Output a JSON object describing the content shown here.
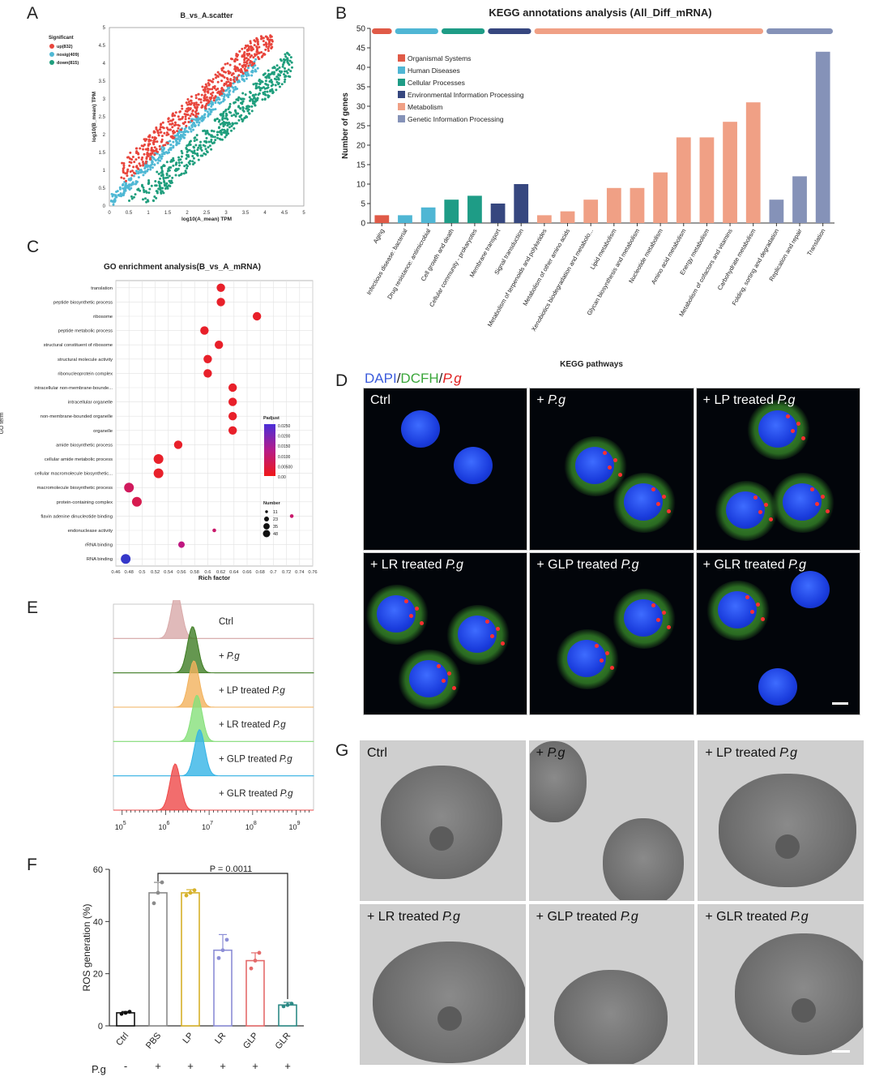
{
  "panels": {
    "A": "A",
    "B": "B",
    "C": "C",
    "D": "D",
    "E": "E",
    "F": "F",
    "G": "G"
  },
  "chart_data": [
    {
      "id": "A",
      "type": "scatter",
      "title": "B_vs_A.scatter",
      "xlabel": "log10(A_mean) TPM",
      "ylabel": "log10(B_mean) TPM",
      "xlim": [
        0,
        5
      ],
      "ylim": [
        0,
        5
      ],
      "xticks": [
        "0",
        "0.5",
        "1",
        "1.5",
        "2",
        "2.5",
        "3",
        "3.5",
        "4",
        "4.5",
        "5"
      ],
      "yticks": [
        "0",
        "0.5",
        "1",
        "1.5",
        "2",
        "2.5",
        "3",
        "3.5",
        "4",
        "4.5",
        "5"
      ],
      "legend_title": "Significant",
      "legend": [
        {
          "label": "up(832)",
          "color": "#e8453c"
        },
        {
          "label": "nosig(409)",
          "color": "#4fb8d4"
        },
        {
          "label": "down(815)",
          "color": "#1f9e7d"
        }
      ]
    },
    {
      "id": "B",
      "type": "bar",
      "title": "KEGG annotations analysis (All_Diff_mRNA)",
      "xlabel": "KEGG pathways",
      "ylabel": "Number of genes",
      "ylim": [
        0,
        50
      ],
      "yticks": [
        "0",
        "5",
        "10",
        "15",
        "20",
        "25",
        "30",
        "35",
        "40",
        "45",
        "50"
      ],
      "categories": [
        "Aging",
        "Infectious disease: bacterial",
        "Drug resistance: antimicrobial",
        "Cell growth and death",
        "Cellular community - prokaryotes",
        "Membrane transport",
        "Signal transduction",
        "Metabolism of terpenoids and polyketides",
        "Metabolism of other amino acids",
        "Xenobiotics biodegradation and metabolo...",
        "Lipid metabolism",
        "Glycan biosynthesis and metabolism",
        "Nucleotide metabolism",
        "Amino acid metabolism",
        "Energy metabolism",
        "Metabolism of cofactors and vitamins",
        "Carbohydrate metabolism",
        "Folding, sorting and degradation",
        "Replication and repair",
        "Translation"
      ],
      "values": [
        2,
        2,
        4,
        6,
        7,
        5,
        10,
        2,
        3,
        6,
        9,
        9,
        13,
        22,
        22,
        26,
        31,
        6,
        12,
        44
      ],
      "groups": [
        0,
        1,
        1,
        2,
        2,
        3,
        3,
        4,
        4,
        4,
        4,
        4,
        4,
        4,
        4,
        4,
        4,
        5,
        5,
        5
      ],
      "legend": [
        {
          "label": "Organismal Systems",
          "color": "#e05a47"
        },
        {
          "label": "Human Diseases",
          "color": "#4fb6d4"
        },
        {
          "label": "Cellular Processes",
          "color": "#1e9c86"
        },
        {
          "label": "Environmental Information Processing",
          "color": "#36477f"
        },
        {
          "label": "Metabolism",
          "color": "#f0a085"
        },
        {
          "label": "Genetic Information Processing",
          "color": "#8592b8"
        }
      ]
    },
    {
      "id": "C",
      "type": "scatter",
      "title": "GO enrichment analysis(B_vs_A_mRNA)",
      "xlabel": "Rich factor",
      "ylabel": "GO term",
      "xlim": [
        0.46,
        0.76
      ],
      "xticks": [
        "0.46",
        "0.48",
        "0.5",
        "0.52",
        "0.54",
        "0.56",
        "0.58",
        "0.6",
        "0.62",
        "0.64",
        "0.66",
        "0.68",
        "0.7",
        "0.72",
        "0.74",
        "0.76"
      ],
      "terms": [
        "translation",
        "peptide biosynthetic process",
        "ribosome",
        "peptide metabolic process",
        "structural constituent of ribosome",
        "structural molecule activity",
        "ribonucleoprotein complex",
        "intracellular non-membrane-bounde...",
        "intracellular organelle",
        "non-membrane-bounded organelle",
        "organelle",
        "amide biosynthetic process",
        "cellular amide metabolic process",
        "cellular macromolecule biosynthetic...",
        "macromolecule biosynthetic process",
        "protein-containing complex",
        "flavin adenine dinucleotide binding",
        "endonuclease activity",
        "rRNA binding",
        "RNA binding"
      ],
      "rich": [
        0.62,
        0.62,
        0.675,
        0.595,
        0.617,
        0.6,
        0.6,
        0.638,
        0.638,
        0.638,
        0.638,
        0.555,
        0.525,
        0.525,
        0.48,
        0.492,
        0.728,
        0.61,
        0.56,
        0.475
      ],
      "sizes": [
        35,
        35,
        35,
        35,
        35,
        35,
        35,
        35,
        35,
        35,
        35,
        35,
        48,
        48,
        48,
        48,
        11,
        11,
        23,
        48
      ],
      "padj_level": [
        1,
        1,
        1,
        1,
        1,
        1,
        1,
        1,
        1,
        1,
        1,
        1,
        1,
        1,
        0.55,
        0.65,
        0.45,
        0.45,
        0.3,
        0
      ],
      "padj_legend_title": "Padjust",
      "padj_ticks": [
        "0.0250",
        "0.0200",
        "0.0150",
        "0.0100",
        "0.00500",
        "0.00"
      ],
      "size_legend_title": "Number",
      "size_legend": [
        "11",
        "23",
        "35",
        "48"
      ]
    },
    {
      "id": "E",
      "type": "area",
      "xlabel": "",
      "xticks": [
        "10",
        "10",
        "10",
        "10",
        "10"
      ],
      "xtick_exps": [
        "5",
        "6",
        "7",
        "8",
        "9"
      ],
      "series": [
        {
          "name": "Ctrl",
          "peak": 6.25,
          "color": "#d8a9a9"
        },
        {
          "name": "+ P.g",
          "peak": 6.62,
          "color": "#3f7d24"
        },
        {
          "name": "+ LP treated P.g",
          "peak": 6.65,
          "color": "#f2b25c"
        },
        {
          "name": "+ LR treated P.g",
          "peak": 6.72,
          "color": "#86e07a"
        },
        {
          "name": "+ GLP treated P.g",
          "peak": 6.78,
          "color": "#34b4e6"
        },
        {
          "name": "+ GLR treated P.g",
          "peak": 6.22,
          "color": "#ef4848"
        }
      ]
    },
    {
      "id": "F",
      "type": "bar",
      "ylabel": "ROS generation (%)",
      "ylim": [
        0,
        60
      ],
      "yticks": [
        "0",
        "20",
        "40",
        "60"
      ],
      "categories": [
        "Ctrl",
        "PBS",
        "LP",
        "LR",
        "GLP",
        "GLR"
      ],
      "values": [
        5,
        51,
        51,
        29,
        25,
        8
      ],
      "points": [
        [
          4.6,
          5.0,
          5.4
        ],
        [
          47,
          51,
          55
        ],
        [
          50,
          51,
          52
        ],
        [
          26,
          29,
          33
        ],
        [
          22,
          25,
          28
        ],
        [
          7.5,
          8,
          8.5
        ]
      ],
      "errors": [
        0.5,
        4,
        1.2,
        6,
        3,
        1
      ],
      "colors": [
        "#111111",
        "#8a8a8a",
        "#d6b12a",
        "#8c8ed6",
        "#e46a6a",
        "#2d8a86"
      ],
      "pg_label": "P.g",
      "pg_signs": [
        "-",
        "+",
        "+",
        "+",
        "+",
        "+"
      ],
      "annotation": "P = 0.0011"
    }
  ],
  "panel_d": {
    "stain_dapi": "DAPI",
    "sep": "/",
    "stain_dcfh": "DCFH",
    "stain_pg": "P.g",
    "labels": [
      {
        "pre": "Ctrl",
        "it": ""
      },
      {
        "pre": "+ ",
        "it": "P.g"
      },
      {
        "pre": "+ LP treated ",
        "it": "P.g"
      },
      {
        "pre": "+ LR treated ",
        "it": "P.g"
      },
      {
        "pre": "+ GLP treated ",
        "it": "P.g"
      },
      {
        "pre": "+ GLR treated ",
        "it": "P.g"
      }
    ]
  },
  "panel_g": {
    "labels": [
      {
        "pre": "Ctrl",
        "it": ""
      },
      {
        "pre": "+ ",
        "it": "P.g"
      },
      {
        "pre": "+ LP treated ",
        "it": "P.g"
      },
      {
        "pre": "+ LR treated ",
        "it": "P.g"
      },
      {
        "pre": "+ GLP treated ",
        "it": "P.g"
      },
      {
        "pre": "+ GLR treated ",
        "it": "P.g"
      }
    ]
  }
}
